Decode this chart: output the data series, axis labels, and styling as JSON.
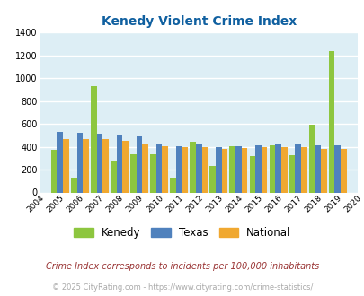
{
  "title": "Kenedy Violent Crime Index",
  "years": [
    2004,
    2005,
    2006,
    2007,
    2008,
    2009,
    2010,
    2011,
    2012,
    2013,
    2014,
    2015,
    2016,
    2017,
    2018,
    2019,
    2020
  ],
  "kenedy": [
    null,
    375,
    120,
    930,
    270,
    335,
    335,
    120,
    445,
    235,
    405,
    315,
    415,
    325,
    595,
    1240,
    null
  ],
  "texas": [
    null,
    530,
    520,
    515,
    505,
    490,
    430,
    405,
    420,
    400,
    405,
    410,
    420,
    425,
    415,
    410,
    null
  ],
  "national": [
    null,
    465,
    465,
    465,
    455,
    430,
    405,
    400,
    400,
    380,
    385,
    395,
    395,
    395,
    380,
    380,
    null
  ],
  "kenedy_color": "#8dc63f",
  "texas_color": "#4f81bd",
  "national_color": "#f0a830",
  "bg_color": "#ddeef5",
  "ylim": [
    0,
    1400
  ],
  "yticks": [
    0,
    200,
    400,
    600,
    800,
    1000,
    1200,
    1400
  ],
  "grid_color": "#ffffff",
  "title_color": "#1060a0",
  "footnote1": "Crime Index corresponds to incidents per 100,000 inhabitants",
  "footnote2": "© 2025 CityRating.com - https://www.cityrating.com/crime-statistics/",
  "footnote1_color": "#993333",
  "footnote2_color": "#aaaaaa",
  "legend_labels": [
    "Kenedy",
    "Texas",
    "National"
  ]
}
